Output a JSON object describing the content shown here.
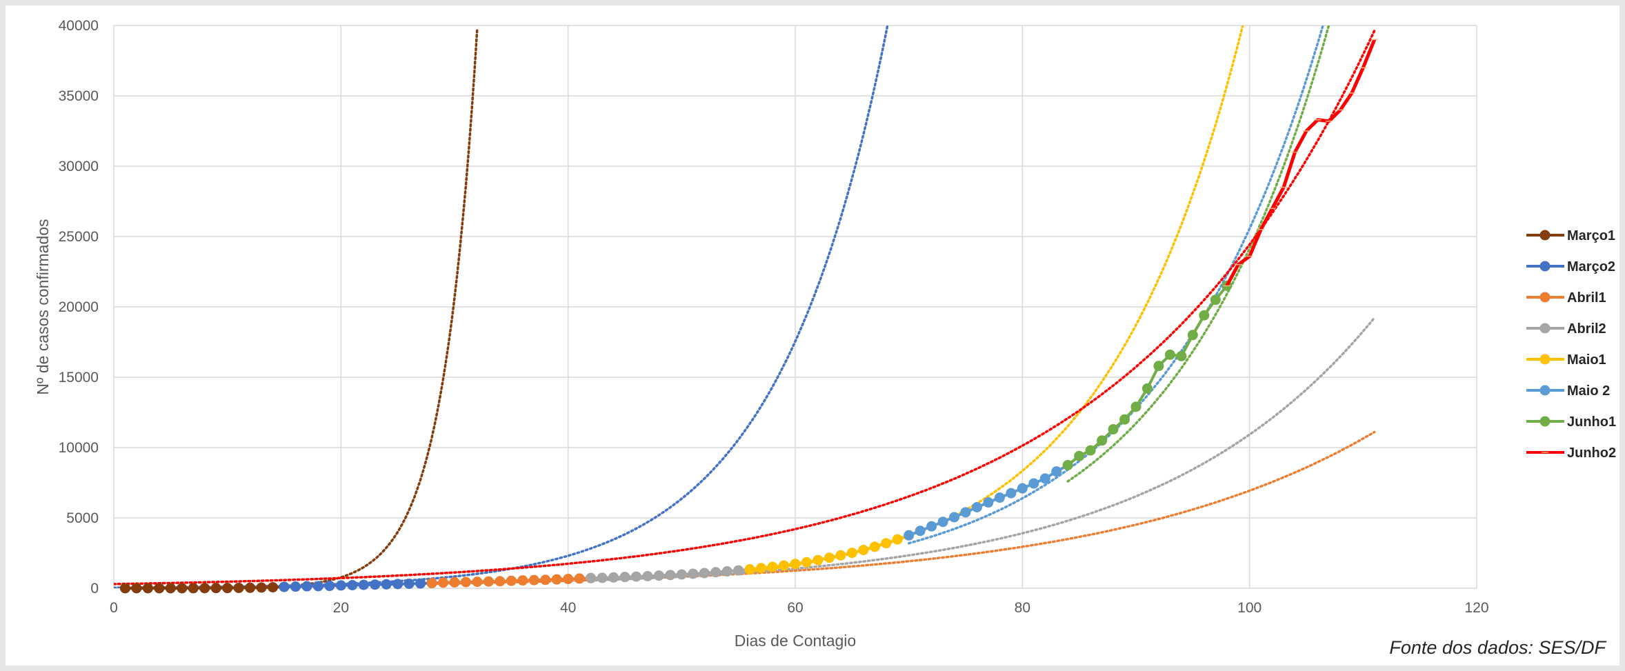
{
  "chart_data": {
    "type": "line",
    "title": "",
    "xlabel": "Dias de Contagio",
    "ylabel": "Nº de casos confirmados",
    "xlim": [
      0,
      120
    ],
    "ylim": [
      0,
      40000
    ],
    "x_ticks": [
      0,
      20,
      40,
      60,
      80,
      100,
      120
    ],
    "y_ticks": [
      0,
      5000,
      10000,
      15000,
      20000,
      25000,
      30000,
      35000,
      40000
    ],
    "grid": true,
    "legend_position": "right",
    "colors": {
      "Março1": "#843c0c",
      "Março2": "#4472c4",
      "Abril1": "#ed7d31",
      "Abril2": "#a5a5a5",
      "Maio1": "#ffc000",
      "Maio 2": "#5b9bd5",
      "Junho1": "#70ad47",
      "Junho2": "#ff0000"
    },
    "series": [
      {
        "name": "Março1",
        "x": [
          1,
          2,
          3,
          4,
          5,
          6,
          7,
          8,
          9,
          10,
          11,
          12,
          13,
          14,
          15
        ],
        "y": [
          1,
          1,
          2,
          2,
          2,
          3,
          5,
          8,
          12,
          17,
          26,
          35,
          50,
          70,
          100
        ]
      },
      {
        "name": "Março2",
        "x": [
          15,
          16,
          17,
          18,
          19,
          20,
          21,
          22,
          23,
          24,
          25,
          26,
          27,
          28
        ],
        "y": [
          100,
          115,
          140,
          150,
          170,
          200,
          220,
          240,
          260,
          280,
          300,
          320,
          340,
          370
        ]
      },
      {
        "name": "Abril1",
        "x": [
          28,
          29,
          30,
          31,
          32,
          33,
          34,
          35,
          36,
          37,
          38,
          39,
          40,
          41,
          42
        ],
        "y": [
          370,
          400,
          420,
          440,
          460,
          480,
          500,
          530,
          560,
          580,
          600,
          630,
          660,
          690,
          720
        ]
      },
      {
        "name": "Abril2",
        "x": [
          42,
          43,
          44,
          45,
          46,
          47,
          48,
          49,
          50,
          51,
          52,
          53,
          54,
          55,
          56
        ],
        "y": [
          720,
          740,
          770,
          800,
          830,
          860,
          900,
          940,
          980,
          1030,
          1080,
          1140,
          1200,
          1270,
          1340
        ]
      },
      {
        "name": "Maio1",
        "x": [
          56,
          57,
          58,
          59,
          60,
          61,
          62,
          63,
          64,
          65,
          66,
          67,
          68,
          69,
          70
        ],
        "y": [
          1340,
          1430,
          1520,
          1620,
          1730,
          1850,
          2000,
          2170,
          2340,
          2520,
          2720,
          2950,
          3200,
          3470,
          3760
        ]
      },
      {
        "name": "Maio 2",
        "x": [
          70,
          71,
          72,
          73,
          74,
          75,
          76,
          77,
          78,
          79,
          80,
          81,
          82,
          83,
          84
        ],
        "y": [
          3760,
          4080,
          4400,
          4720,
          5050,
          5400,
          5760,
          6100,
          6440,
          6760,
          7100,
          7450,
          7800,
          8300,
          8750
        ]
      },
      {
        "name": "Junho1",
        "x": [
          84,
          85,
          86,
          87,
          88,
          89,
          90,
          91,
          92,
          93,
          94,
          95,
          96,
          97,
          98
        ],
        "y": [
          8750,
          9400,
          9800,
          10500,
          11300,
          12000,
          12900,
          14200,
          15800,
          16600,
          16500,
          18000,
          19400,
          20500,
          21500
        ]
      },
      {
        "name": "Junho2",
        "x": [
          98,
          99,
          100,
          101,
          102,
          103,
          104,
          105,
          106,
          107,
          108,
          109,
          110,
          111
        ],
        "y": [
          21500,
          23000,
          23600,
          25500,
          27000,
          28500,
          31000,
          32500,
          33300,
          33200,
          34000,
          35200,
          37000,
          39000
        ]
      }
    ],
    "trendlines": [
      {
        "series": "Março1",
        "type": "exponential",
        "x_range": [
          0,
          32
        ],
        "y0": 1.1,
        "growth": 0.328
      },
      {
        "series": "Março2",
        "type": "exponential",
        "x_range": [
          0,
          71
        ],
        "y0": 40,
        "growth": 0.1014
      },
      {
        "series": "Abril1",
        "type": "exponential",
        "x_range": [
          28,
          111
        ],
        "y0": 96,
        "growth": 0.0428
      },
      {
        "series": "Abril2",
        "type": "exponential",
        "x_range": [
          42,
          111
        ],
        "y0": 64,
        "growth": 0.0514
      },
      {
        "series": "Maio1",
        "type": "exponential",
        "x_range": [
          56,
          105
        ],
        "y0": 13,
        "growth": 0.0808
      },
      {
        "series": "Maio 2",
        "type": "exponential",
        "x_range": [
          70,
          109
        ],
        "y0": 25,
        "growth": 0.0693
      },
      {
        "series": "Junho1",
        "type": "exponential",
        "x_range": [
          84,
          107
        ],
        "y0": 17.5,
        "growth": 0.0723
      },
      {
        "series": "Junho2",
        "type": "exponential",
        "x_range": [
          0,
          111
        ],
        "y0": 300,
        "growth": 0.044
      }
    ]
  },
  "source_note": "Fonte dos dados: SES/DF"
}
